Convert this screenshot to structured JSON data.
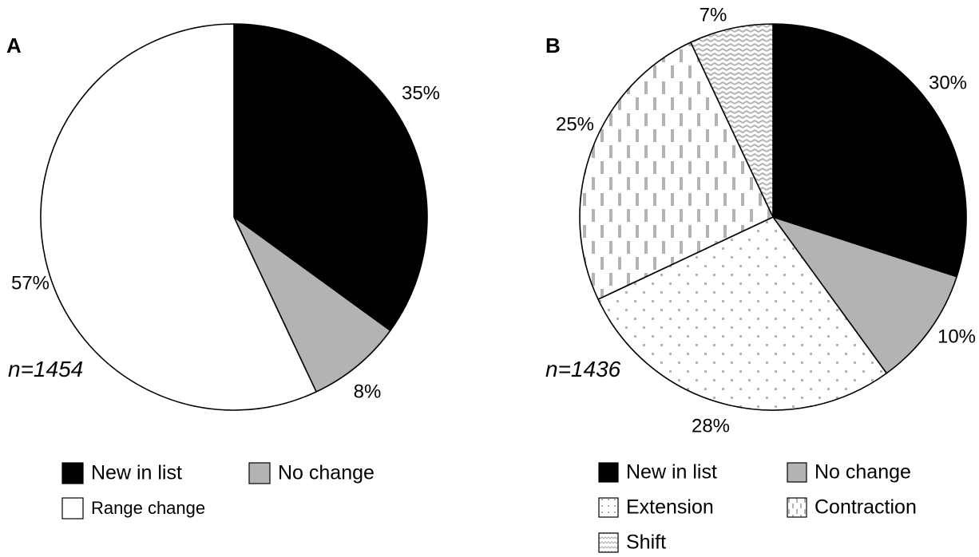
{
  "chart_data": [
    {
      "type": "pie",
      "panel_label": "A",
      "annotation": "n=1454",
      "slices": [
        {
          "name": "New in list",
          "value": 35,
          "label": "35%",
          "fill": "solid",
          "color": "#000000"
        },
        {
          "name": "No change",
          "value": 8,
          "label": "8%",
          "fill": "solid",
          "color": "#b3b3b3"
        },
        {
          "name": "Range change",
          "value": 57,
          "label": "57%",
          "fill": "solid",
          "color": "#ffffff"
        }
      ],
      "legend": [
        {
          "label": "New in list",
          "fill": "solid",
          "color": "#000000"
        },
        {
          "label": "No change",
          "fill": "solid",
          "color": "#b3b3b3"
        },
        {
          "label": "Range change",
          "fill": "solid",
          "color": "#ffffff"
        }
      ],
      "legend_position": "bottom"
    },
    {
      "type": "pie",
      "panel_label": "B",
      "annotation": "n=1436",
      "slices": [
        {
          "name": "New in list",
          "value": 30,
          "label": "30%",
          "fill": "solid",
          "color": "#000000"
        },
        {
          "name": "No change",
          "value": 10,
          "label": "10%",
          "fill": "solid",
          "color": "#b3b3b3"
        },
        {
          "name": "Extension",
          "value": 28,
          "label": "28%",
          "fill": "dots",
          "color": "#b3b3b3"
        },
        {
          "name": "Contraction",
          "value": 25,
          "label": "25%",
          "fill": "dashes",
          "color": "#b3b3b3"
        },
        {
          "name": "Shift",
          "value": 7,
          "label": "7%",
          "fill": "waves",
          "color": "#b3b3b3"
        }
      ],
      "legend": [
        {
          "label": "New in list",
          "fill": "solid",
          "color": "#000000"
        },
        {
          "label": "No change",
          "fill": "solid",
          "color": "#b3b3b3"
        },
        {
          "label": "Extension",
          "fill": "dots",
          "color": "#b3b3b3"
        },
        {
          "label": "Contraction",
          "fill": "dashes",
          "color": "#b3b3b3"
        },
        {
          "label": "Shift",
          "fill": "waves",
          "color": "#b3b3b3"
        }
      ],
      "legend_position": "bottom"
    }
  ]
}
